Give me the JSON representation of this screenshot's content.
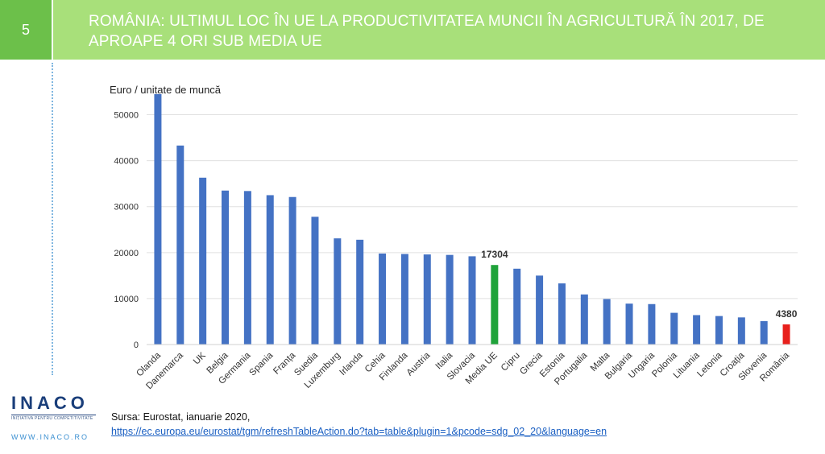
{
  "header": {
    "slide_number": "5",
    "title": "ROMÂNIA: ULTIMUL LOC ÎN UE LA PRODUCTIVITATEA MUNCII ÎN AGRICULTURĂ ÎN 2017, DE APROAPE 4 ORI SUB MEDIA UE"
  },
  "chart_data": {
    "type": "bar",
    "ylabel": "Euro / unitate de muncă",
    "ylim": [
      0,
      55000
    ],
    "yticks": [
      0,
      10000,
      20000,
      30000,
      40000,
      50000
    ],
    "grid": true,
    "categories": [
      "Olanda",
      "Danemarca",
      "UK",
      "Belgia",
      "Germania",
      "Spania",
      "Franța",
      "Suedia",
      "Luxemburg",
      "Irlanda",
      "Cehia",
      "Finlanda",
      "Austria",
      "Italia",
      "Slovacia",
      "Media UE",
      "Cipru",
      "Grecia",
      "Estonia",
      "Portugalia",
      "Malta",
      "Bulgaria",
      "Ungaria",
      "Polonia",
      "Lituania",
      "Letonia",
      "Croația",
      "Slovenia",
      "România"
    ],
    "values": [
      54500,
      43300,
      36300,
      33500,
      33400,
      32500,
      32100,
      27800,
      23100,
      22800,
      19800,
      19700,
      19600,
      19500,
      19200,
      17304,
      16500,
      15000,
      13300,
      10900,
      9900,
      8900,
      8800,
      6900,
      6400,
      6200,
      5900,
      5100,
      4380
    ],
    "colors": {
      "default": "#4472c4",
      "highlight_eu": "#1fa33a",
      "highlight_ro": "#e8201c"
    },
    "data_labels": [
      {
        "category": "Media UE",
        "text": "17304"
      },
      {
        "category": "România",
        "text": "4380"
      }
    ]
  },
  "logo": {
    "name": "INACO",
    "tagline": "INIȚIATIVA PENTRU COMPETITIVITATE",
    "url": "WWW.INACO.RO"
  },
  "source": {
    "line1": "Sursa: Eurostat, ianuarie 2020,",
    "link": "https://ec.europa.eu/eurostat/tgm/refreshTableAction.do?tab=table&plugin=1&pcode=sdg_02_20&language=en"
  }
}
